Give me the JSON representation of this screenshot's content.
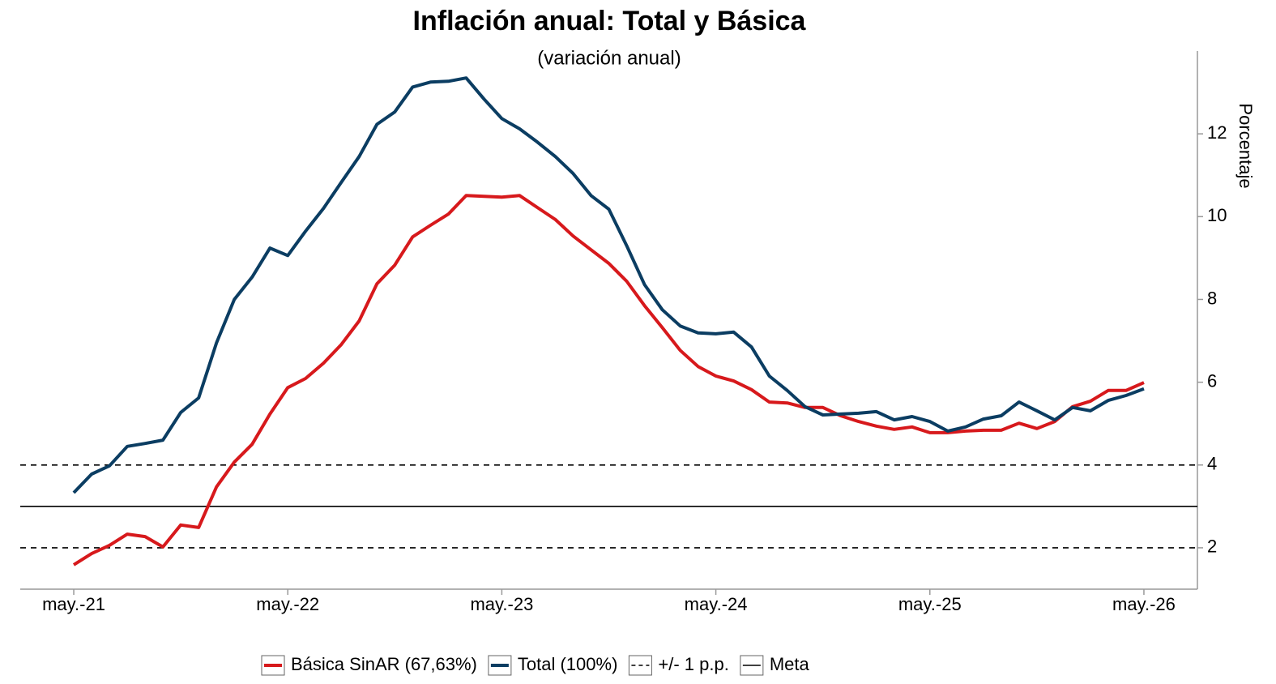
{
  "chart_data": {
    "type": "line",
    "title": "Inflación anual: Total y Básica",
    "subtitle": "(variación anual)",
    "y_label": "Porcentaje",
    "x": [
      "2021-05",
      "2021-06",
      "2021-07",
      "2021-08",
      "2021-09",
      "2021-10",
      "2021-11",
      "2021-12",
      "2022-01",
      "2022-02",
      "2022-03",
      "2022-04",
      "2022-05",
      "2022-06",
      "2022-07",
      "2022-08",
      "2022-09",
      "2022-10",
      "2022-11",
      "2022-12",
      "2023-01",
      "2023-02",
      "2023-03",
      "2023-04",
      "2023-05",
      "2023-06",
      "2023-07",
      "2023-08",
      "2023-09",
      "2023-10",
      "2023-11",
      "2023-12",
      "2024-01",
      "2024-02",
      "2024-03",
      "2024-04",
      "2024-05",
      "2024-06",
      "2024-07",
      "2024-08",
      "2024-09",
      "2024-10",
      "2024-11",
      "2024-12",
      "2025-01",
      "2025-02",
      "2025-03",
      "2025-04",
      "2025-05",
      "2025-06",
      "2025-07",
      "2025-08",
      "2025-09",
      "2025-10",
      "2025-11",
      "2025-12",
      "2026-01",
      "2026-02",
      "2026-03",
      "2026-04",
      "2026-05"
    ],
    "series": [
      {
        "name": "Básica SinAR (67,63%)",
        "color": "#d7191c",
        "values": [
          1.59,
          1.86,
          2.06,
          2.33,
          2.27,
          2.02,
          2.55,
          2.49,
          3.47,
          4.07,
          4.5,
          5.23,
          5.87,
          6.09,
          6.46,
          6.91,
          7.48,
          8.38,
          8.83,
          9.51,
          9.79,
          10.06,
          10.51,
          10.49,
          10.47,
          10.51,
          10.22,
          9.93,
          9.53,
          9.2,
          8.87,
          8.44,
          7.85,
          7.32,
          6.77,
          6.38,
          6.15,
          6.03,
          5.82,
          5.52,
          5.5,
          5.39,
          5.39,
          5.19,
          5.05,
          4.94,
          4.86,
          4.92,
          4.78,
          4.78,
          4.82,
          4.84,
          4.84,
          5.01,
          4.88,
          5.05,
          5.41,
          5.54,
          5.8,
          5.8,
          5.99
        ]
      },
      {
        "name": "Total (100%)",
        "color": "#0b3d62",
        "values": [
          3.33,
          3.78,
          3.98,
          4.45,
          4.52,
          4.6,
          5.27,
          5.62,
          6.95,
          8.0,
          8.54,
          9.24,
          9.06,
          9.65,
          10.2,
          10.83,
          11.45,
          12.23,
          12.53,
          13.13,
          13.25,
          13.27,
          13.35,
          12.84,
          12.37,
          12.12,
          11.8,
          11.45,
          11.04,
          10.51,
          10.18,
          9.3,
          8.36,
          7.75,
          7.36,
          7.19,
          7.17,
          7.21,
          6.85,
          6.15,
          5.8,
          5.41,
          5.21,
          5.23,
          5.25,
          5.29,
          5.09,
          5.17,
          5.05,
          4.82,
          4.92,
          5.11,
          5.19,
          5.52,
          5.31,
          5.09,
          5.39,
          5.31,
          5.56,
          5.68,
          5.84
        ]
      }
    ],
    "reference_lines": [
      {
        "name": "+/- 1 p.p.",
        "values": [
          2,
          4
        ],
        "style": "dashed",
        "color": "#000000"
      },
      {
        "name": "Meta",
        "values": [
          3
        ],
        "style": "solid",
        "color": "#000000"
      }
    ],
    "xlim": [
      "2021-02",
      "2026-08"
    ],
    "xticks": [
      {
        "value": "2021-05",
        "label": "may.-21"
      },
      {
        "value": "2022-05",
        "label": "may.-22"
      },
      {
        "value": "2023-05",
        "label": "may.-23"
      },
      {
        "value": "2024-05",
        "label": "may.-24"
      },
      {
        "value": "2025-05",
        "label": "may.-25"
      },
      {
        "value": "2026-05",
        "label": "may.-26"
      }
    ],
    "ylim": [
      1,
      14
    ],
    "yticks": [
      2,
      4,
      6,
      8,
      10,
      12
    ],
    "y_axis_side": "right",
    "legend": "bottom"
  }
}
